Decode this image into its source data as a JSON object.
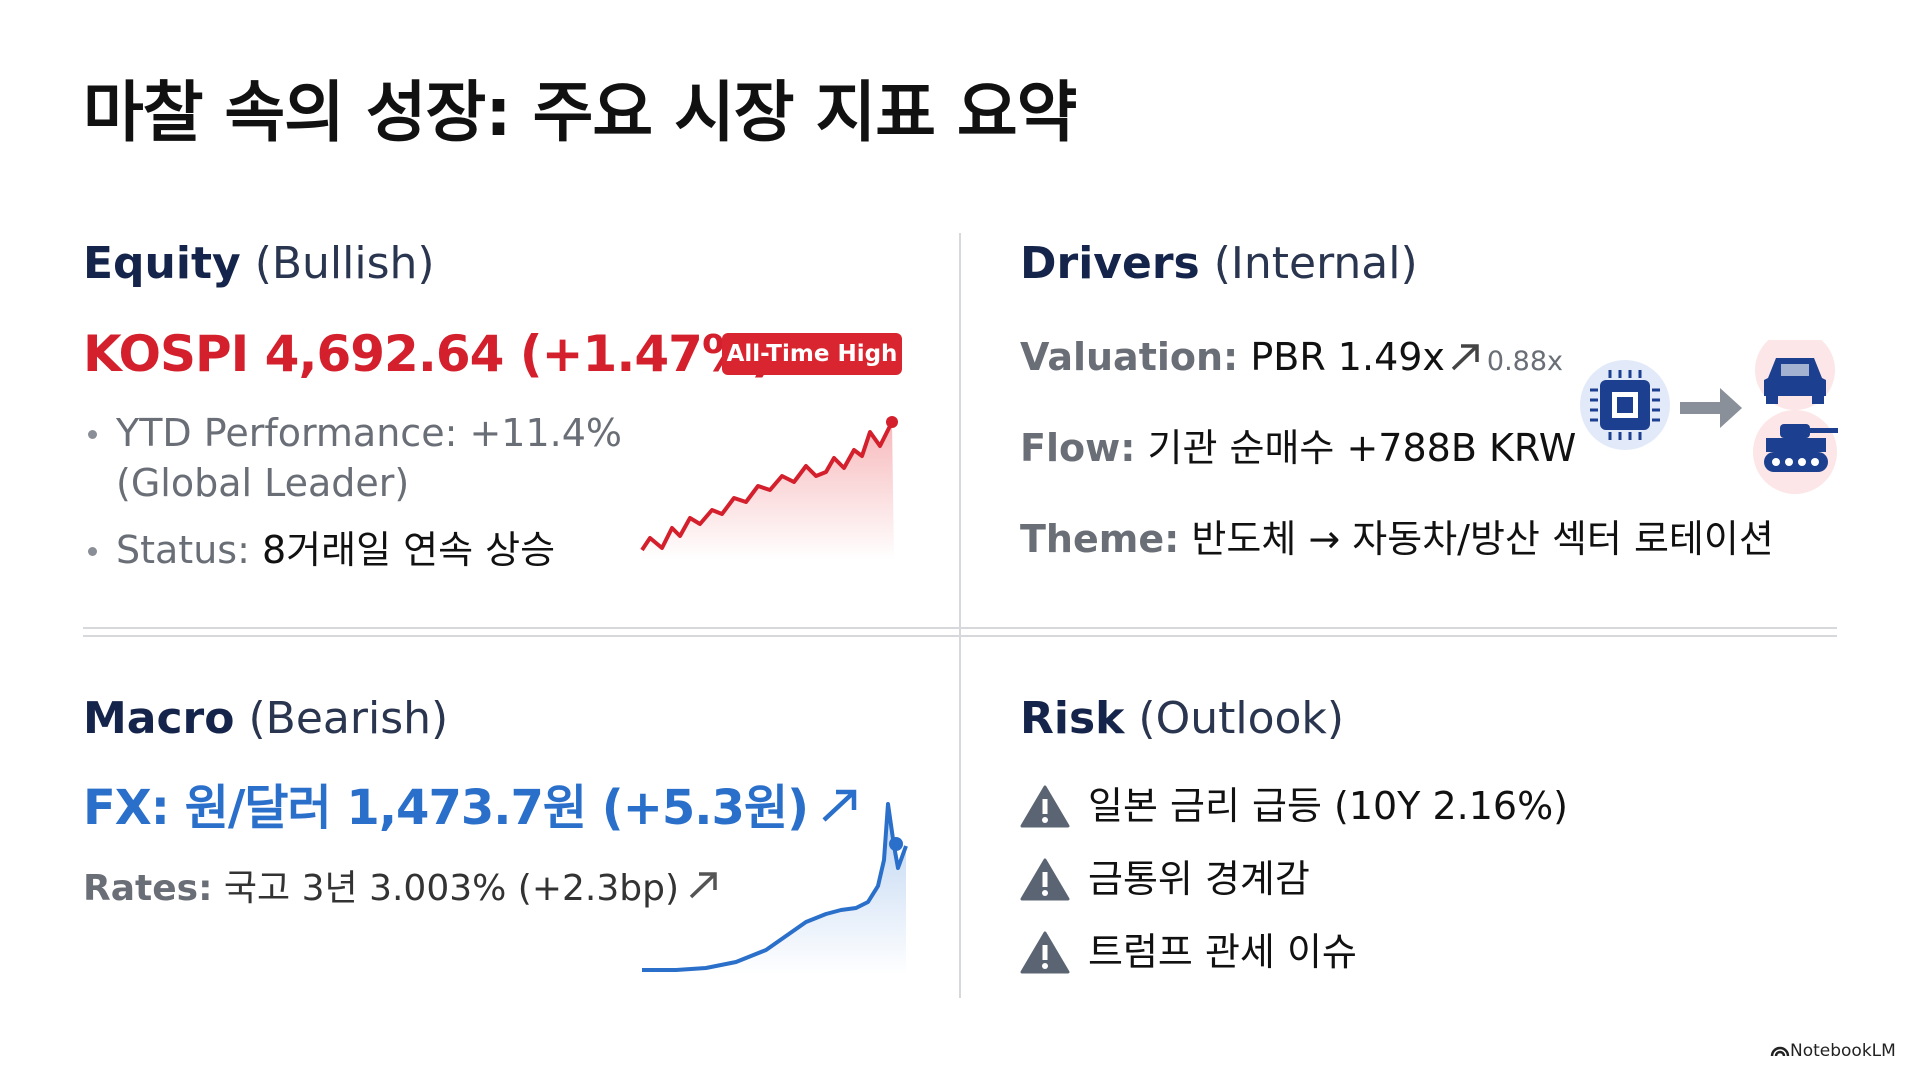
{
  "title": "마찰 속의 성장: 주요 시장 지표 요약",
  "equity": {
    "heading": "Equity",
    "qualifier": "(Bullish)",
    "headline": "KOSPI 4,692.64 (+1.47%)",
    "badge": "All-Time High",
    "bullets": [
      {
        "lines": [
          "YTD Performance: +11.4%",
          "(Global Leader)"
        ]
      },
      {
        "label": "Status:",
        "text": "8거래일 연속 상승"
      }
    ]
  },
  "drivers": {
    "heading": "Drivers",
    "qualifier": "(Internal)",
    "items": [
      {
        "label": "Valuation:",
        "text": "PBR 1.49x",
        "note": "0.88x"
      },
      {
        "label": "Flow:",
        "text": "기관 순매수 +788B KRW"
      },
      {
        "label": "Theme:",
        "text": "반도체 → 자동차/방산 섹터 로테이션"
      }
    ]
  },
  "macro": {
    "heading": "Macro",
    "qualifier": "(Bearish)",
    "fx": "FX: 원/달러 1,473.7원 (+5.3원)",
    "rates": {
      "label": "Rates:",
      "text": "국고 3년 3.003% (+2.3bp)"
    }
  },
  "risk": {
    "heading": "Risk",
    "qualifier": "(Outlook)",
    "items": [
      "일본 금리 급등 (10Y 2.16%)",
      "금통위 경계감",
      "트럼프 관세 이슈"
    ]
  },
  "footer": "NotebookLM"
}
